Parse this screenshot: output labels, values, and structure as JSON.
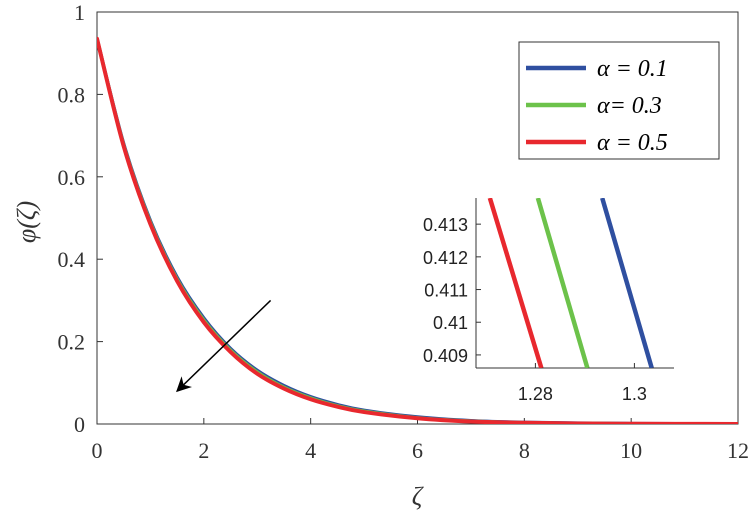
{
  "chart_data": {
    "type": "line",
    "xlabel": "ζ",
    "ylabel": "φ(ζ)",
    "xlim": [
      0,
      12
    ],
    "ylim": [
      0,
      1
    ],
    "x_ticks": [
      "0",
      "2",
      "4",
      "6",
      "8",
      "10",
      "12"
    ],
    "y_ticks": [
      "0",
      "0.2",
      "0.4",
      "0.6",
      "0.8",
      "1"
    ],
    "legend_position": "top-right",
    "series": [
      {
        "name": "α = 0.1",
        "color": "#2f4fa0",
        "x": [
          0,
          0.5,
          1,
          1.5,
          2,
          2.5,
          3,
          3.5,
          4,
          4.5,
          5,
          6,
          7,
          8,
          9,
          10,
          11,
          12
        ],
        "y": [
          0.935,
          0.68,
          0.493,
          0.356,
          0.257,
          0.183,
          0.13,
          0.093,
          0.066,
          0.047,
          0.033,
          0.017,
          0.008,
          0.004,
          0.002,
          0.001,
          0.0005,
          0.0002
        ]
      },
      {
        "name": "α= 0.3",
        "color": "#6cc24a",
        "x": [
          0,
          0.5,
          1,
          1.5,
          2,
          2.5,
          3,
          3.5,
          4,
          4.5,
          5,
          6,
          7,
          8,
          9,
          10,
          11,
          12
        ],
        "y": [
          0.935,
          0.677,
          0.489,
          0.351,
          0.252,
          0.179,
          0.126,
          0.089,
          0.063,
          0.044,
          0.031,
          0.015,
          0.007,
          0.003,
          0.0015,
          0.0007,
          0.0003,
          0.0001
        ]
      },
      {
        "name": "α = 0.5",
        "color": "#e8282e",
        "x": [
          0,
          0.5,
          1,
          1.5,
          2,
          2.5,
          3,
          3.5,
          4,
          4.5,
          5,
          6,
          7,
          8,
          9,
          10,
          11,
          12
        ],
        "y": [
          0.935,
          0.674,
          0.485,
          0.347,
          0.247,
          0.175,
          0.122,
          0.086,
          0.06,
          0.042,
          0.029,
          0.014,
          0.006,
          0.003,
          0.0013,
          0.0006,
          0.0003,
          0.0001
        ]
      }
    ],
    "inset": {
      "xlim": [
        1.268,
        1.308
      ],
      "ylim": [
        0.4086,
        0.4138
      ],
      "x_ticks": [
        "1.28",
        "1.3"
      ],
      "x_tick_values": [
        1.28,
        1.3
      ],
      "y_ticks": [
        "0.413",
        "0.412",
        "0.411",
        "0.41",
        "0.409"
      ],
      "y_tick_values": [
        0.413,
        0.412,
        0.411,
        0.41,
        0.409
      ],
      "series": [
        {
          "name": "α = 0.1",
          "color": "#2f4fa0",
          "x": [
            1.2935,
            1.3035
          ],
          "y": [
            0.4138,
            0.4086
          ]
        },
        {
          "name": "α= 0.3",
          "color": "#6cc24a",
          "x": [
            1.2805,
            1.2905
          ],
          "y": [
            0.4138,
            0.4086
          ]
        },
        {
          "name": "α = 0.5",
          "color": "#e8282e",
          "x": [
            1.2708,
            1.2812
          ],
          "y": [
            0.4138,
            0.4086
          ]
        }
      ]
    },
    "annotation": {
      "type": "arrow",
      "direction": "decreasing with α",
      "from": [
        3.25,
        0.3
      ],
      "to": [
        1.5,
        0.08
      ]
    }
  }
}
